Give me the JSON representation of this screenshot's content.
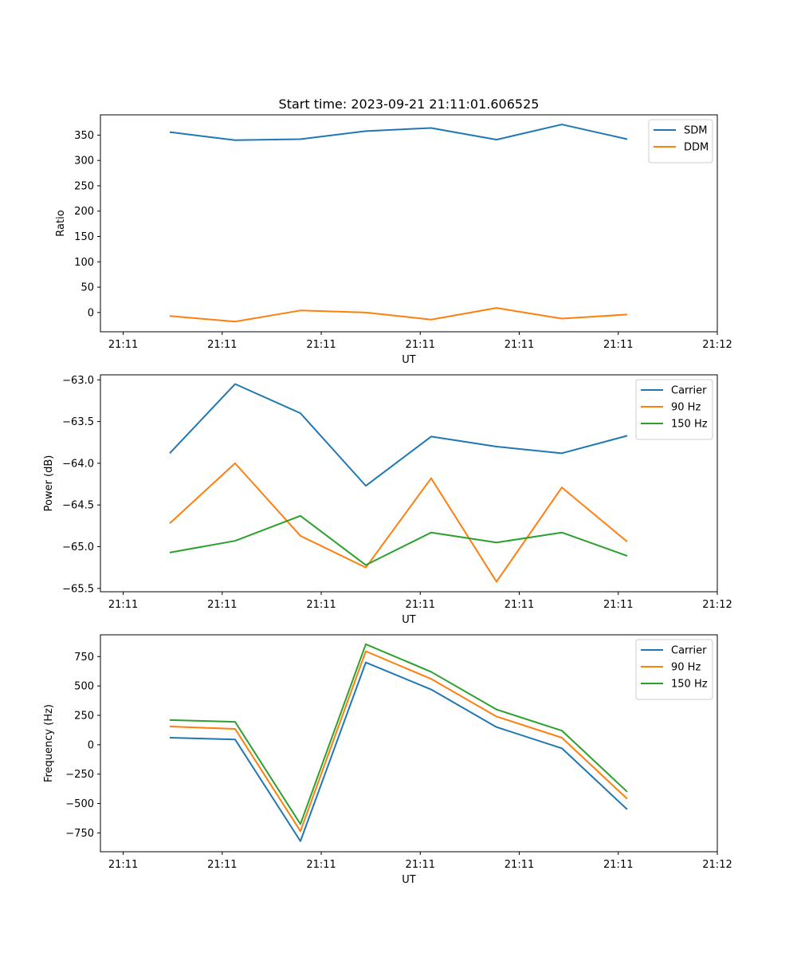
{
  "figure_title": "Start time: 2023-09-21 21:11:01.606525",
  "colors": {
    "blue": "#1f77b4",
    "orange": "#ff7f0e",
    "green": "#2ca02c"
  },
  "chart_data": [
    {
      "type": "line",
      "title": "Start time: 2023-09-21 21:11:01.606525",
      "xlabel": "UT",
      "ylabel": "Ratio",
      "xlim": [
        -0.23,
        6.0
      ],
      "ylim": [
        -38,
        390
      ],
      "x": [
        0.47,
        1.13,
        1.79,
        2.45,
        3.11,
        3.77,
        4.43,
        5.09
      ],
      "x_tick_values": [
        0,
        1,
        2,
        3,
        4,
        5,
        6
      ],
      "x_tick_labels": [
        "21:11",
        "21:11",
        "21:11",
        "21:11",
        "21:11",
        "21:11",
        "21:12"
      ],
      "y_ticks": [
        0,
        50,
        100,
        150,
        200,
        250,
        300,
        350
      ],
      "y_tick_labels": [
        "0",
        "50",
        "100",
        "150",
        "200",
        "250",
        "300",
        "350"
      ],
      "legend_position": "top-right",
      "series": [
        {
          "name": "SDM",
          "color": "#1f77b4",
          "values": [
            356,
            340,
            342,
            358,
            364,
            341,
            371,
            342
          ]
        },
        {
          "name": "DDM",
          "color": "#ff7f0e",
          "values": [
            -7,
            -18,
            4,
            0,
            -14,
            9,
            -12,
            -4
          ]
        }
      ]
    },
    {
      "type": "line",
      "title": "",
      "xlabel": "UT",
      "ylabel": "Power (dB)",
      "xlim": [
        -0.23,
        6.0
      ],
      "ylim": [
        -65.54,
        -62.94
      ],
      "x": [
        0.47,
        1.13,
        1.79,
        2.45,
        3.11,
        3.77,
        4.43,
        5.09
      ],
      "x_tick_values": [
        0,
        1,
        2,
        3,
        4,
        5,
        6
      ],
      "x_tick_labels": [
        "21:11",
        "21:11",
        "21:11",
        "21:11",
        "21:11",
        "21:11",
        "21:12"
      ],
      "y_ticks": [
        -63.0,
        -63.5,
        -64.0,
        -64.5,
        -65.0,
        -65.5
      ],
      "y_tick_labels": [
        "−63.0",
        "−63.5",
        "−64.0",
        "−64.5",
        "−65.0",
        "−65.5"
      ],
      "legend_position": "top-right",
      "series": [
        {
          "name": "Carrier",
          "color": "#1f77b4",
          "values": [
            -63.88,
            -63.05,
            -63.4,
            -64.27,
            -63.68,
            -63.8,
            -63.88,
            -63.67
          ]
        },
        {
          "name": "90 Hz",
          "color": "#ff7f0e",
          "values": [
            -64.72,
            -64.0,
            -64.87,
            -65.25,
            -64.18,
            -65.42,
            -64.29,
            -64.94
          ]
        },
        {
          "name": "150 Hz",
          "color": "#2ca02c",
          "values": [
            -65.07,
            -64.93,
            -64.63,
            -65.22,
            -64.83,
            -64.95,
            -64.83,
            -65.11
          ]
        }
      ]
    },
    {
      "type": "line",
      "title": "",
      "xlabel": "UT",
      "ylabel": "Frequency (Hz)",
      "xlim": [
        -0.23,
        6.0
      ],
      "ylim": [
        -910,
        935
      ],
      "x": [
        0.47,
        1.13,
        1.79,
        2.45,
        3.11,
        3.77,
        4.43,
        5.09
      ],
      "x_tick_values": [
        0,
        1,
        2,
        3,
        4,
        5,
        6
      ],
      "x_tick_labels": [
        "21:11",
        "21:11",
        "21:11",
        "21:11",
        "21:11",
        "21:11",
        "21:12"
      ],
      "y_ticks": [
        750,
        500,
        250,
        0,
        -250,
        -500,
        -750
      ],
      "y_tick_labels": [
        "750",
        "500",
        "250",
        "0",
        "−250",
        "−500",
        "−750"
      ],
      "legend_position": "top-right",
      "series": [
        {
          "name": "Carrier",
          "color": "#1f77b4",
          "values": [
            60,
            45,
            -820,
            700,
            470,
            150,
            -30,
            -550
          ]
        },
        {
          "name": "90 Hz",
          "color": "#ff7f0e",
          "values": [
            155,
            135,
            -735,
            795,
            560,
            240,
            60,
            -460
          ]
        },
        {
          "name": "150 Hz",
          "color": "#2ca02c",
          "values": [
            210,
            195,
            -675,
            855,
            620,
            300,
            120,
            -400
          ]
        }
      ]
    }
  ]
}
